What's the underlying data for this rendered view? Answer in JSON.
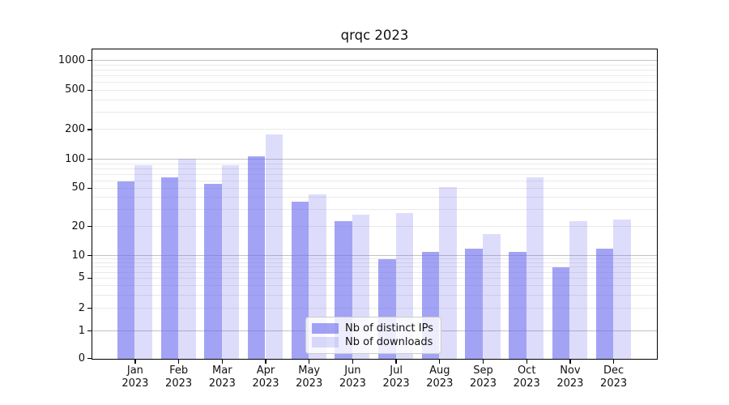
{
  "figure": {
    "title": "qrqc 2023"
  },
  "chart_data": {
    "type": "bar",
    "title": "qrqc 2023",
    "categories": [
      "Jan",
      "Feb",
      "Mar",
      "Apr",
      "May",
      "Jun",
      "Jul",
      "Aug",
      "Sep",
      "Oct",
      "Nov",
      "Dec"
    ],
    "category_year": "2023",
    "series": [
      {
        "name": "Nb of distinct IPs",
        "key": "ips",
        "color": "#6666ee",
        "alpha": 0.6,
        "values": [
          60,
          65,
          56,
          108,
          37,
          23,
          9,
          11,
          12,
          11,
          7,
          12
        ]
      },
      {
        "name": "Nb of downloads",
        "key": "downloads",
        "color": "#6666ee",
        "alpha": 0.22,
        "values": [
          88,
          102,
          88,
          180,
          44,
          27,
          28,
          52,
          17,
          66,
          23,
          24
        ]
      }
    ],
    "y_ticks": [
      0,
      1,
      2,
      5,
      10,
      20,
      50,
      100,
      200,
      500,
      1000
    ],
    "y_scale": "symlog",
    "ylim": [
      0,
      1000
    ],
    "grid": {
      "horizontal": true,
      "minor": true,
      "major_values": [
        1,
        10,
        100,
        1000
      ]
    },
    "legend_position": "lower-center-inside"
  }
}
